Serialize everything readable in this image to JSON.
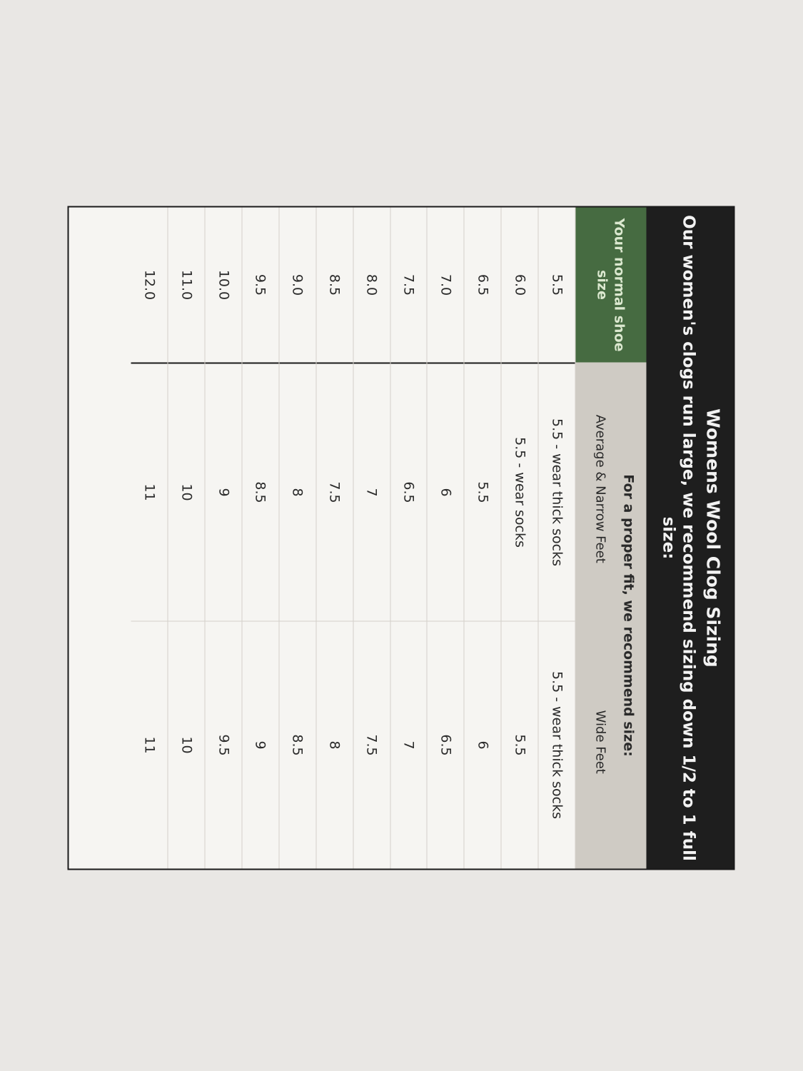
{
  "title": "Womens Wool Clog Sizing",
  "subtitle": "Our women's clogs run large, we recommend sizing down 1/2 to 1 full size:",
  "header": {
    "size_col": "Your normal shoe size",
    "recommend": "For a proper fit, we recommend size:",
    "avg_col": "Average & Narrow Feet",
    "wide_col": "Wide Feet"
  },
  "colors": {
    "title_band": "#1e1e1e",
    "size_header": "#466b41",
    "rec_header": "#cfcbc4"
  },
  "rows": [
    {
      "size": "5.5",
      "avg": "5.5 - wear thick socks",
      "wide": "5.5 - wear thick socks"
    },
    {
      "size": "6.0",
      "avg": "5.5 - wear socks",
      "wide": "5.5"
    },
    {
      "size": "6.5",
      "avg": "5.5",
      "wide": "6"
    },
    {
      "size": "7.0",
      "avg": "6",
      "wide": "6.5"
    },
    {
      "size": "7.5",
      "avg": "6.5",
      "wide": "7"
    },
    {
      "size": "8.0",
      "avg": "7",
      "wide": "7.5"
    },
    {
      "size": "8.5",
      "avg": "7.5",
      "wide": "8"
    },
    {
      "size": "9.0",
      "avg": "8",
      "wide": "8.5"
    },
    {
      "size": "9.5",
      "avg": "8.5",
      "wide": "9"
    },
    {
      "size": "10.0",
      "avg": "9",
      "wide": "9.5"
    },
    {
      "size": "11.0",
      "avg": "10",
      "wide": "10"
    },
    {
      "size": "12.0",
      "avg": "11",
      "wide": "11"
    }
  ]
}
